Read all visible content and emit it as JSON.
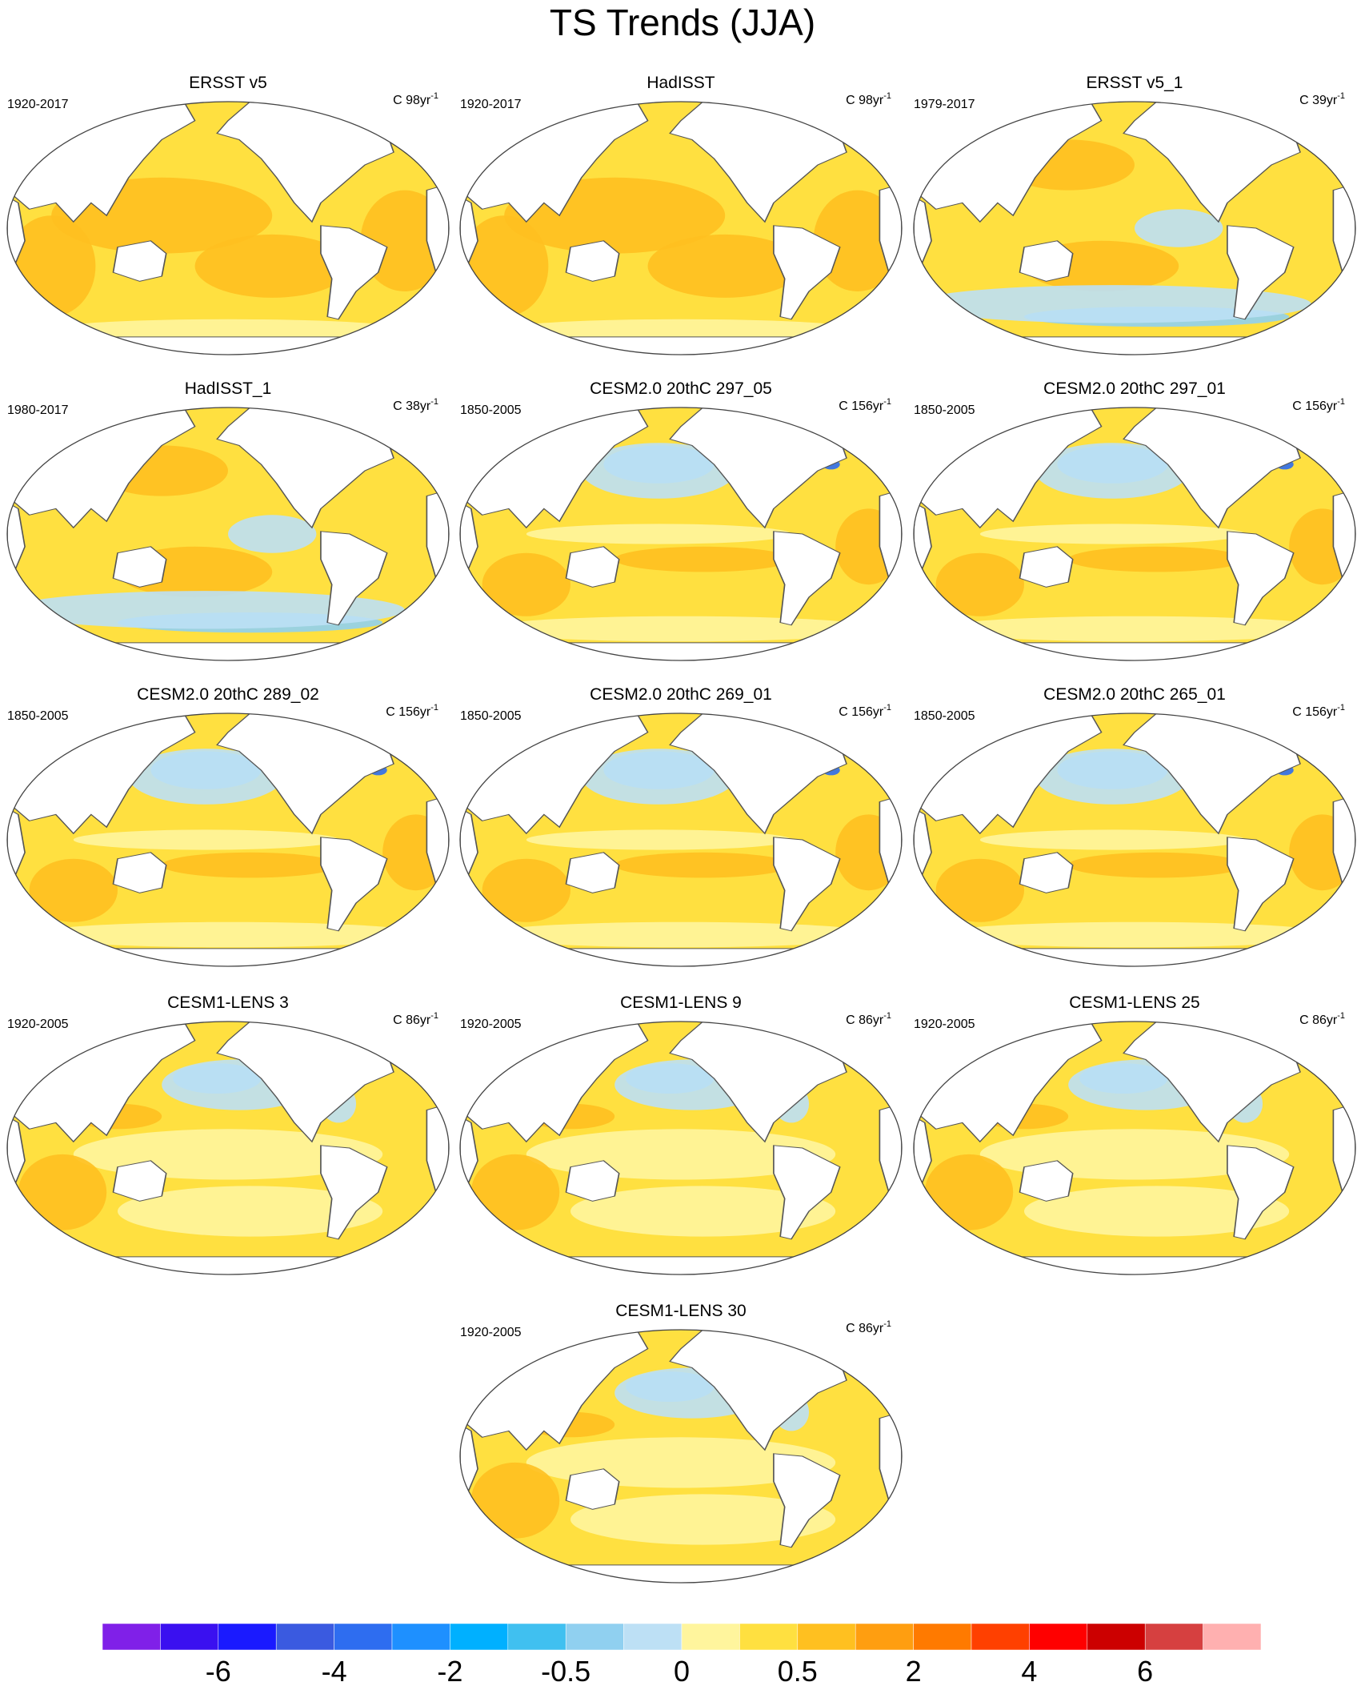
{
  "title": "TS Trends (JJA)",
  "panels": [
    {
      "title": "ERSST v5",
      "period": "1920-2017",
      "units": "C 98yr",
      "units_exp": "-1"
    },
    {
      "title": "HadISST",
      "period": "1920-2017",
      "units": "C 98yr",
      "units_exp": "-1"
    },
    {
      "title": "ERSST v5_1",
      "period": "1979-2017",
      "units": "C 39yr",
      "units_exp": "-1"
    },
    {
      "title": "HadISST_1",
      "period": "1980-2017",
      "units": "C 38yr",
      "units_exp": "-1"
    },
    {
      "title": "CESM2.0 20thC 297_05",
      "period": "1850-2005",
      "units": "C 156yr",
      "units_exp": "-1"
    },
    {
      "title": "CESM2.0 20thC 297_01",
      "period": "1850-2005",
      "units": "C 156yr",
      "units_exp": "-1"
    },
    {
      "title": "CESM2.0 20thC 289_02",
      "period": "1850-2005",
      "units": "C 156yr",
      "units_exp": "-1"
    },
    {
      "title": "CESM2.0 20thC 269_01",
      "period": "1850-2005",
      "units": "C 156yr",
      "units_exp": "-1"
    },
    {
      "title": "CESM2.0 20thC 265_01",
      "period": "1850-2005",
      "units": "C 156yr",
      "units_exp": "-1"
    },
    {
      "title": "CESM1-LENS 3",
      "period": "1920-2005",
      "units": "C 86yr",
      "units_exp": "-1"
    },
    {
      "title": "CESM1-LENS 9",
      "period": "1920-2005",
      "units": "C 86yr",
      "units_exp": "-1"
    },
    {
      "title": "CESM1-LENS 25",
      "period": "1920-2005",
      "units": "C 86yr",
      "units_exp": "-1"
    },
    {
      "title": "CESM1-LENS 30",
      "period": "1920-2005",
      "units": "C 86yr",
      "units_exp": "-1"
    }
  ],
  "colorbar": {
    "colors": [
      "#8020e8",
      "#3a10f0",
      "#1a1aff",
      "#3a5ae0",
      "#2e6df0",
      "#1e90ff",
      "#00b0ff",
      "#40c0f0",
      "#90d0f0",
      "#bde0f5",
      "#fff59d",
      "#ffe040",
      "#ffc020",
      "#ff9e10",
      "#ff7a00",
      "#ff4000",
      "#ff0000",
      "#cc0000",
      "#d64040",
      "#ffb0b0"
    ],
    "labels": [
      -6,
      -4,
      -2,
      -0.5,
      0,
      0.5,
      2,
      4,
      6
    ]
  }
}
